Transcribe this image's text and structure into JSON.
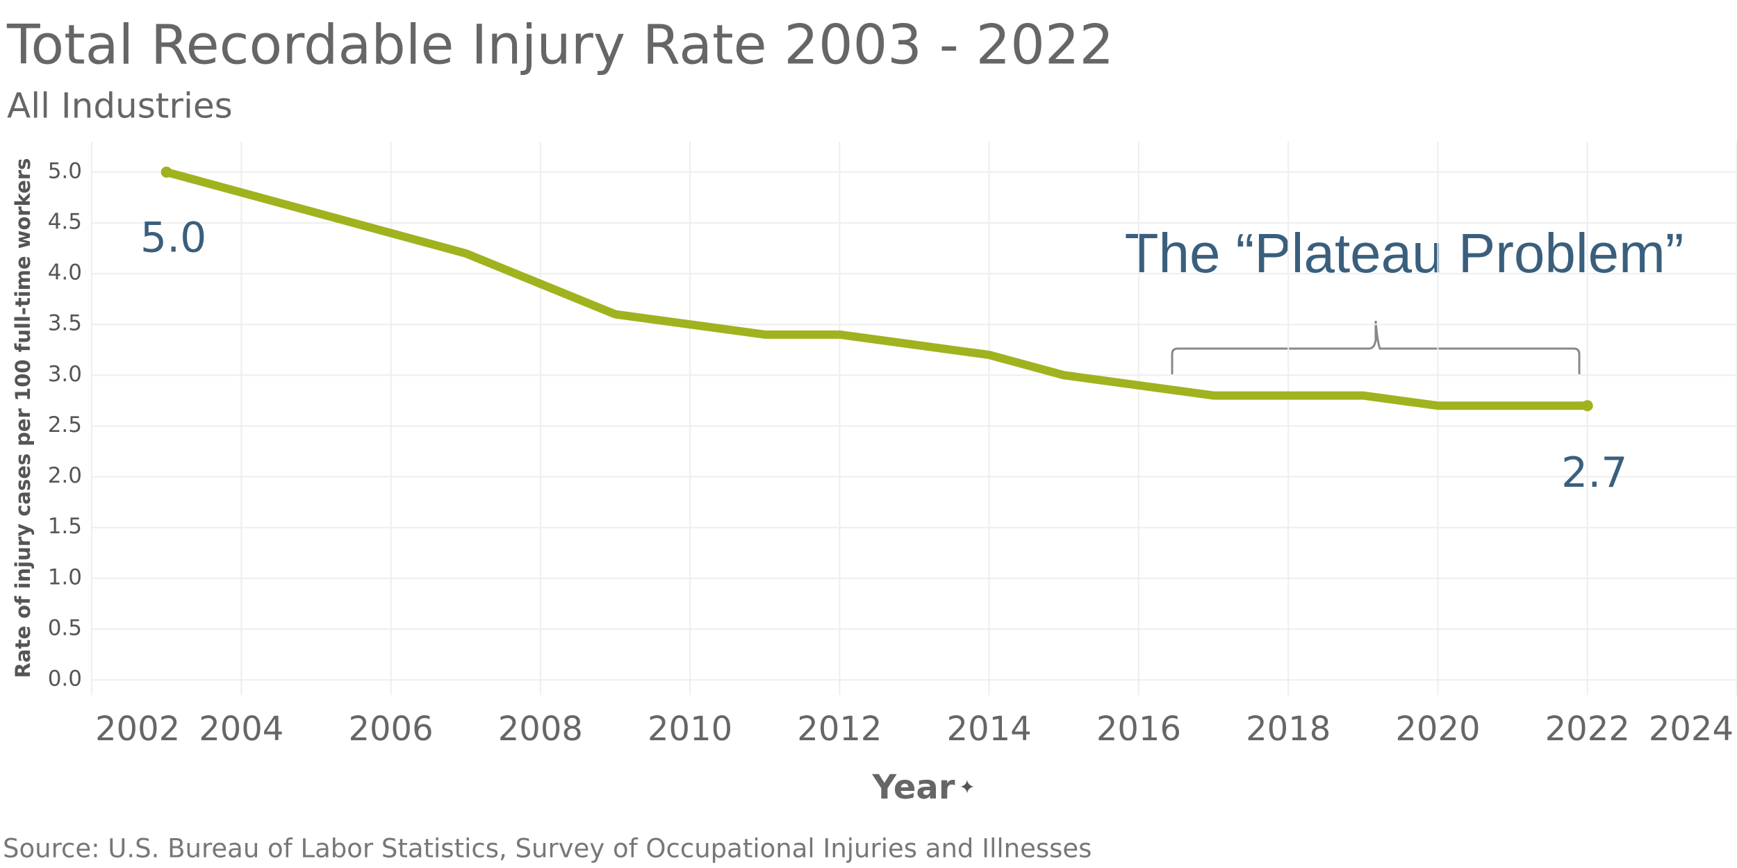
{
  "chart_data": {
    "type": "line",
    "title": "Total Recordable Injury Rate 2003 - 2022",
    "subtitle": "All Industries",
    "x_label": "Year",
    "y_label": "Rate of injury cases per 100 full-time workers",
    "source": "Source: U.S. Bureau of Labor Statistics, Survey of Occupational Injuries and Illnesses",
    "annotation": "The “Plateau Problem”",
    "x": [
      2003,
      2004,
      2005,
      2006,
      2007,
      2008,
      2009,
      2010,
      2011,
      2012,
      2013,
      2014,
      2015,
      2016,
      2017,
      2018,
      2019,
      2020,
      2021,
      2022
    ],
    "series": [
      {
        "color": "#a0b21e",
        "values": [
          5.0,
          4.8,
          4.6,
          4.4,
          4.2,
          3.9,
          3.6,
          3.5,
          3.4,
          3.4,
          3.3,
          3.2,
          3.0,
          2.9,
          2.8,
          2.8,
          2.8,
          2.7,
          2.7,
          2.7
        ],
        "value_labels": [
          "5.0",
          null,
          null,
          null,
          null,
          null,
          null,
          null,
          null,
          null,
          null,
          null,
          null,
          null,
          null,
          null,
          null,
          null,
          null,
          "2.7"
        ]
      }
    ],
    "xlim": [
      2002,
      2024
    ],
    "xticks": [
      2002,
      2004,
      2006,
      2008,
      2010,
      2012,
      2014,
      2016,
      2018,
      2020,
      2022,
      2024
    ],
    "ylim": [
      -0.15,
      5.3
    ],
    "yticks": [
      {
        "value": 0,
        "label": "0.0"
      },
      0.5,
      {
        "value": 1,
        "label": "1.0"
      },
      1.5,
      {
        "value": 2,
        "label": "2.0"
      },
      2.5,
      {
        "value": 3,
        "label": "3.0"
      },
      3.5,
      {
        "value": 4,
        "label": "4.0"
      },
      4.5,
      {
        "value": 5,
        "label": "5.0"
      }
    ],
    "grid": true
  }
}
